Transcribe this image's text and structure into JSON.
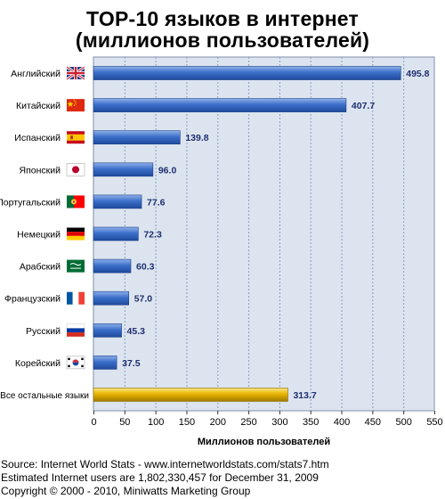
{
  "chart_data": {
    "type": "bar",
    "orientation": "horizontal",
    "title_line1": "TOP-10 языков в интернет",
    "title_line2": "(миллионов пользователей)",
    "xlabel": "Миллионов пользователей",
    "xlim": [
      0,
      550
    ],
    "xticks": [
      "0",
      "50",
      "100",
      "150",
      "200",
      "250",
      "300",
      "350",
      "400",
      "450",
      "500",
      "550"
    ],
    "grid": true,
    "categories": [
      "Английский",
      "Китайский",
      "Испанский",
      "Японский",
      "Португальский",
      "Немецкий",
      "Арабский",
      "Французский",
      "Русский",
      "Корейский",
      "Все остальные языки"
    ],
    "values": [
      495.8,
      407.7,
      139.8,
      96.0,
      77.6,
      72.3,
      60.3,
      57.0,
      45.3,
      37.5,
      313.7
    ],
    "value_labels": [
      "495.8",
      "407.7",
      "139.8",
      "96.0",
      "77.6",
      "72.3",
      "60.3",
      "57.0",
      "45.3",
      "37.5",
      "313.7"
    ],
    "flags": [
      "uk-flag-icon",
      "china-flag-icon",
      "spain-flag-icon",
      "japan-flag-icon",
      "portugal-flag-icon",
      "germany-flag-icon",
      "saudi-arabia-flag-icon",
      "france-flag-icon",
      "russia-flag-icon",
      "south-korea-flag-icon",
      ""
    ],
    "colors": {
      "bar": "#3b6fc9",
      "bar_other": "#e6b400",
      "plot_bg": "#dce4f0",
      "grid": "#8aa0c0",
      "label_text": "#1f2f6e"
    }
  },
  "source": {
    "line1": "Source: Internet World Stats - www.internetworldstats.com/stats7.htm",
    "line2": "Estimated Internet users are 1,802,330,457 for December 31, 2009",
    "line3": "Copyright © 2000 - 2010, Miniwatts Marketing Group"
  }
}
